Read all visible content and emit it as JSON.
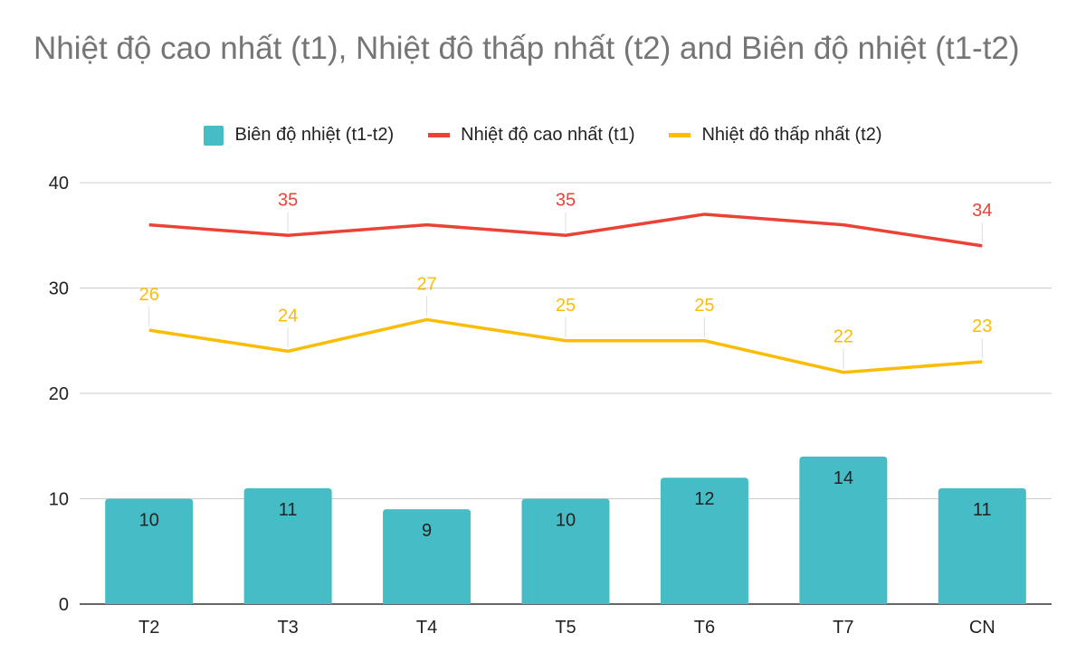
{
  "chart_data": {
    "type": "bar",
    "title": "Nhiệt độ cao nhất  (t1), Nhiệt đô thấp nhất (t2) and Biên độ nhiệt (t1-t2)",
    "categories": [
      "T2",
      "T3",
      "T4",
      "T5",
      "T6",
      "T7",
      "CN"
    ],
    "ylim": [
      0,
      40
    ],
    "yticks": [
      0,
      10,
      20,
      30,
      40
    ],
    "grid": true,
    "legend_position": "top",
    "series": [
      {
        "name": "Biên độ nhiệt (t1-t2)",
        "type": "bar",
        "color": "#46BDC6",
        "label_color": "#222222",
        "values": [
          10,
          11,
          9,
          10,
          12,
          14,
          11
        ],
        "labels": [
          "10",
          "11",
          "9",
          "10",
          "12",
          "14",
          "11"
        ]
      },
      {
        "name": "Nhiệt độ cao nhất  (t1)",
        "type": "line",
        "color": "#EA4335",
        "label_color": "#EA4335",
        "values": [
          36,
          35,
          36,
          35,
          37,
          36,
          34
        ],
        "labels": [
          "",
          "35",
          "",
          "35",
          "",
          "",
          "34"
        ]
      },
      {
        "name": "Nhiệt đô thấp nhất (t2)",
        "type": "line",
        "color": "#FBBC04",
        "label_color": "#FBBC04",
        "values": [
          26,
          24,
          27,
          25,
          25,
          22,
          23
        ],
        "labels": [
          "26",
          "24",
          "27",
          "25",
          "25",
          "22",
          "23"
        ]
      }
    ]
  }
}
